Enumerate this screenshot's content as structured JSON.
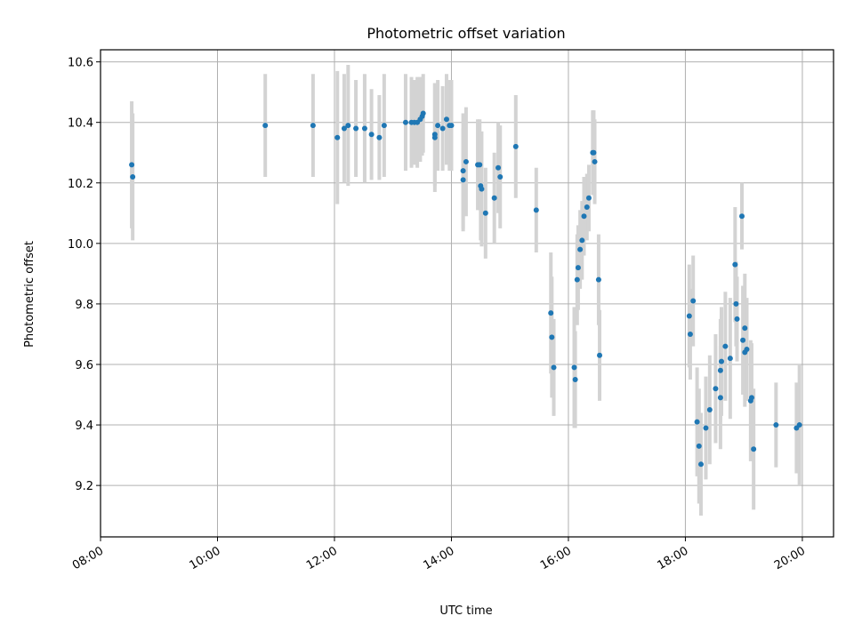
{
  "chart_data": {
    "type": "scatter",
    "title": "Photometric offset variation",
    "xlabel": "UTC time",
    "ylabel": "Photometric offset",
    "x_is_time": true,
    "xlim": [
      "08:00",
      "20:32"
    ],
    "ylim": [
      9.03,
      10.64
    ],
    "x_ticks": [
      "08:00",
      "10:00",
      "12:00",
      "14:00",
      "16:00",
      "18:00",
      "20:00"
    ],
    "y_ticks": [
      "9.2",
      "9.4",
      "9.6",
      "9.8",
      "10.0",
      "10.2",
      "10.4",
      "10.6"
    ],
    "grid": true,
    "marker_color": "#1f77b4",
    "errorbar_color": "#d3d3d3",
    "series": [
      {
        "x": [
          "08:32",
          "08:33",
          "10:49",
          "11:38",
          "12:03",
          "12:10",
          "12:14",
          "12:22",
          "12:31",
          "12:38",
          "12:46",
          "12:51",
          "13:13",
          "13:19",
          "13:22",
          "13:25",
          "13:28",
          "13:30",
          "13:31",
          "13:43",
          "13:43",
          "13:46",
          "13:51",
          "13:55",
          "13:58",
          "14:00",
          "14:12",
          "14:12",
          "14:15",
          "14:27",
          "14:29",
          "14:30",
          "14:31",
          "14:35",
          "14:44",
          "14:48",
          "14:50",
          "15:06",
          "15:27",
          "15:42",
          "15:43",
          "15:45",
          "16:06",
          "16:07",
          "16:09",
          "16:10",
          "16:12",
          "16:14",
          "16:16",
          "16:19",
          "16:21",
          "16:25",
          "16:26",
          "16:27",
          "16:31",
          "16:32",
          "18:04",
          "18:05",
          "18:08",
          "18:12",
          "18:14",
          "18:16",
          "18:21",
          "18:25",
          "18:31",
          "18:36",
          "18:36",
          "18:37",
          "18:41",
          "18:46",
          "18:51",
          "18:52",
          "18:53",
          "18:58",
          "18:59",
          "19:01",
          "19:01",
          "19:03",
          "19:07",
          "19:08",
          "19:10",
          "19:33",
          "19:54",
          "19:57"
        ],
        "y": [
          10.26,
          10.22,
          10.39,
          10.39,
          10.35,
          10.38,
          10.39,
          10.38,
          10.38,
          10.36,
          10.35,
          10.39,
          10.4,
          10.4,
          10.4,
          10.4,
          10.41,
          10.42,
          10.43,
          10.36,
          10.35,
          10.39,
          10.38,
          10.41,
          10.39,
          10.39,
          10.24,
          10.21,
          10.27,
          10.26,
          10.26,
          10.19,
          10.18,
          10.1,
          10.15,
          10.25,
          10.22,
          10.32,
          10.11,
          9.77,
          9.69,
          9.59,
          9.59,
          9.55,
          9.88,
          9.92,
          9.98,
          10.01,
          10.09,
          10.12,
          10.15,
          10.3,
          10.3,
          10.27,
          9.88,
          9.63,
          9.76,
          9.7,
          9.81,
          9.41,
          9.33,
          9.27,
          9.39,
          9.45,
          9.52,
          9.49,
          9.58,
          9.61,
          9.66,
          9.62,
          9.93,
          9.8,
          9.75,
          10.09,
          9.68,
          9.64,
          9.72,
          9.65,
          9.48,
          9.49,
          9.32,
          9.4,
          9.39,
          9.4
        ],
        "yerr": [
          0.21,
          0.21,
          0.17,
          0.17,
          0.22,
          0.18,
          0.2,
          0.16,
          0.18,
          0.15,
          0.14,
          0.17,
          0.16,
          0.15,
          0.14,
          0.15,
          0.14,
          0.13,
          0.13,
          0.17,
          0.18,
          0.15,
          0.14,
          0.15,
          0.15,
          0.15,
          0.19,
          0.17,
          0.18,
          0.15,
          0.15,
          0.18,
          0.19,
          0.15,
          0.15,
          0.15,
          0.17,
          0.17,
          0.14,
          0.2,
          0.2,
          0.16,
          0.2,
          0.16,
          0.15,
          0.14,
          0.13,
          0.13,
          0.13,
          0.11,
          0.11,
          0.14,
          0.14,
          0.14,
          0.15,
          0.15,
          0.17,
          0.15,
          0.15,
          0.18,
          0.19,
          0.17,
          0.17,
          0.18,
          0.18,
          0.17,
          0.17,
          0.18,
          0.18,
          0.2,
          0.19,
          0.14,
          0.14,
          0.11,
          0.18,
          0.18,
          0.18,
          0.17,
          0.2,
          0.18,
          0.2,
          0.14,
          0.15,
          0.2
        ]
      }
    ]
  }
}
